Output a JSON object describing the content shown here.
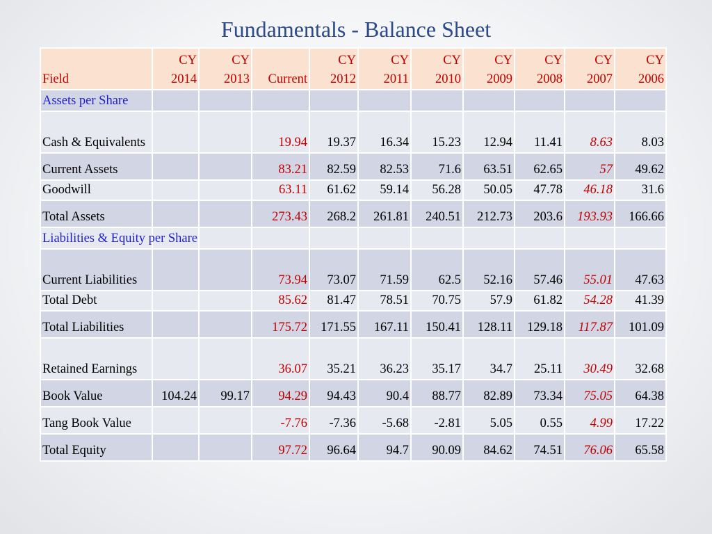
{
  "title": "Fundamentals - Balance Sheet",
  "headers": [
    {
      "l1": "",
      "l2": "Field"
    },
    {
      "l1": "CY",
      "l2": "2014"
    },
    {
      "l1": "CY",
      "l2": "2013"
    },
    {
      "l1": "",
      "l2": "Current"
    },
    {
      "l1": "CY",
      "l2": "2012"
    },
    {
      "l1": "CY",
      "l2": "2011"
    },
    {
      "l1": "CY",
      "l2": "2010"
    },
    {
      "l1": "CY",
      "l2": "2009"
    },
    {
      "l1": "CY",
      "l2": "2008"
    },
    {
      "l1": "CY",
      "l2": "2007"
    },
    {
      "l1": "CY",
      "l2": "2006"
    }
  ],
  "rows": [
    {
      "section": "Assets per Share"
    },
    {
      "label": "Cash & Equivalents",
      "values": [
        "",
        "",
        "19.94",
        "19.37",
        "16.34",
        "15.23",
        "12.94",
        "11.41",
        "8.63",
        "8.03"
      ]
    },
    {
      "label": "Current Assets",
      "values": [
        "",
        "",
        "83.21",
        "82.59",
        "82.53",
        "71.6",
        "63.51",
        "62.65",
        "57",
        "49.62"
      ]
    },
    {
      "label": "Goodwill",
      "values": [
        "",
        "",
        "63.11",
        "61.62",
        "59.14",
        "56.28",
        "50.05",
        "47.78",
        "46.18",
        "31.6"
      ]
    },
    {
      "label": "Total Assets",
      "values": [
        "",
        "",
        "273.43",
        "268.2",
        "261.81",
        "240.51",
        "212.73",
        "203.6",
        "193.93",
        "166.66"
      ]
    },
    {
      "section": "Liabilities & Equity per Share"
    },
    {
      "label": "Current Liabilities",
      "values": [
        "",
        "",
        "73.94",
        "73.07",
        "71.59",
        "62.5",
        "52.16",
        "57.46",
        "55.01",
        "47.63"
      ]
    },
    {
      "label": "Total Debt",
      "values": [
        "",
        "",
        "85.62",
        "81.47",
        "78.51",
        "70.75",
        "57.9",
        "61.82",
        "54.28",
        "41.39"
      ]
    },
    {
      "label": "Total Liabilities",
      "values": [
        "",
        "",
        "175.72",
        "171.55",
        "167.11",
        "150.41",
        "128.11",
        "129.18",
        "117.87",
        "101.09"
      ]
    },
    {
      "label": "Retained Earnings",
      "values": [
        "",
        "",
        "36.07",
        "35.21",
        "36.23",
        "35.17",
        "34.7",
        "25.11",
        "30.49",
        "32.68"
      ]
    },
    {
      "label": "Book Value",
      "values": [
        "104.24",
        "99.17",
        "94.29",
        "94.43",
        "90.4",
        "88.77",
        "82.89",
        "73.34",
        "75.05",
        "64.38"
      ]
    },
    {
      "label": "Tang Book Value",
      "values": [
        "",
        "",
        "-7.76",
        "-7.36",
        "-5.68",
        "-2.81",
        "5.05",
        "0.55",
        "4.99",
        "17.22"
      ]
    },
    {
      "label": "Total Equity",
      "values": [
        "",
        "",
        "97.72",
        "96.64",
        "94.7",
        "90.09",
        "84.62",
        "74.51",
        "76.06",
        "65.58"
      ]
    }
  ]
}
